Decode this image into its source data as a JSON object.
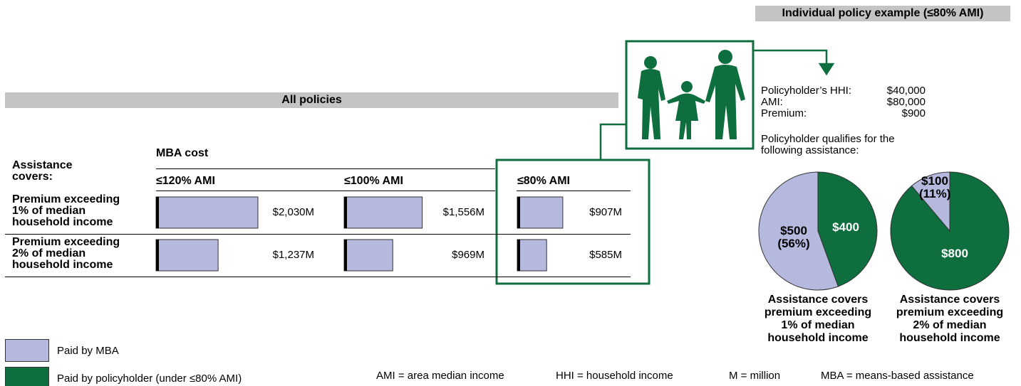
{
  "left": {
    "banner": "All policies",
    "header_mba": "MBA cost",
    "row_header": "Assistance covers:",
    "columns": [
      "≤120% AMI",
      "≤100% AMI",
      "≤80% AMI"
    ],
    "rows": [
      {
        "label": "Premium exceeding 1% of median household income",
        "values": [
          2030,
          1556,
          907
        ],
        "value_labels": [
          "$2,030M",
          "$1,556M",
          "$907M"
        ]
      },
      {
        "label": "Premium exceeding 2% of median household income",
        "values": [
          1237,
          969,
          585
        ],
        "value_labels": [
          "$1,237M",
          "$969M",
          "$585M"
        ]
      }
    ]
  },
  "right": {
    "banner": "Individual policy example (≤80% AMI)",
    "facts": [
      {
        "label": "Policyholder’s HHI:",
        "value": "$40,000"
      },
      {
        "label": "AMI:",
        "value": "$80,000"
      },
      {
        "label": "Premium:",
        "value": "$900"
      }
    ],
    "qualifies": "Policyholder qualifies for the following assistance:",
    "pies": [
      {
        "caption": "Assistance covers premium exceeding 1% of median household income",
        "values": [
          500,
          400
        ],
        "value_labels": [
          "$500 (56%)",
          "$400"
        ]
      },
      {
        "caption": "Assistance covers premium exceeding 2% of median household income",
        "values": [
          100,
          800
        ],
        "value_labels": [
          "$100 (11%)",
          "$800"
        ]
      }
    ]
  },
  "legend": [
    {
      "name": "Paid by MBA",
      "color": "#b4b9dd"
    },
    {
      "name": "Paid by policyholder (under ≤80% AMI)",
      "color": "#0e6e3e"
    }
  ],
  "footnotes": [
    "AMI = area median income",
    "HHI = household income",
    "M = million",
    "MBA = means-based assistance"
  ]
}
